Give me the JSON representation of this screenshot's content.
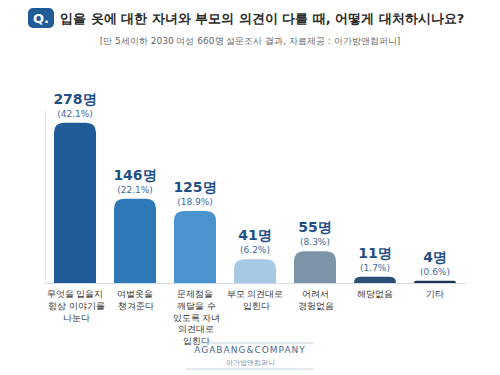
{
  "chart_data": {
    "type": "bar",
    "title_badge": "Q.",
    "title": "입을 옷에 대한 자녀와 부모의 의견이 다를 때, 어떻게 대처하시나요?",
    "subtitle": "[만 5세이하 2030 여성 660명 설문조사 결과, 자료제공 : 아가방앤컴퍼니]",
    "categories": [
      "무엇을 입을지 항상 이야기를 나눈다",
      "여벌옷을 챙겨준다",
      "문제점을 깨달을 수 있도록 자녀 의견대로 입힌다",
      "부모 의견대로 입힌다",
      "어려서 경험없음",
      "해당없음",
      "기타"
    ],
    "values": [
      278,
      146,
      125,
      41,
      55,
      11,
      4
    ],
    "value_labels": [
      "278명",
      "146명",
      "125명",
      "41명",
      "55명",
      "11명",
      "4명"
    ],
    "share_labels": [
      "(42.1%)",
      "(22.1%)",
      "(18.9%)",
      "(6.2%)",
      "(8.3%)",
      "(1.7%)",
      "(0.6%)"
    ],
    "colors": [
      "#1f5b97",
      "#2f78b7",
      "#4b93cf",
      "#a8c9e3",
      "#7d93a8",
      "#2b4f77",
      "#1c3656"
    ],
    "ylim": [
      0,
      300
    ],
    "yticks": [],
    "grid": false,
    "data_labels": true,
    "tick_labels": "x",
    "footer": {
      "logo": "AGABANG&COMPANY",
      "logo_sub": "아가방앤컴퍼니"
    }
  }
}
